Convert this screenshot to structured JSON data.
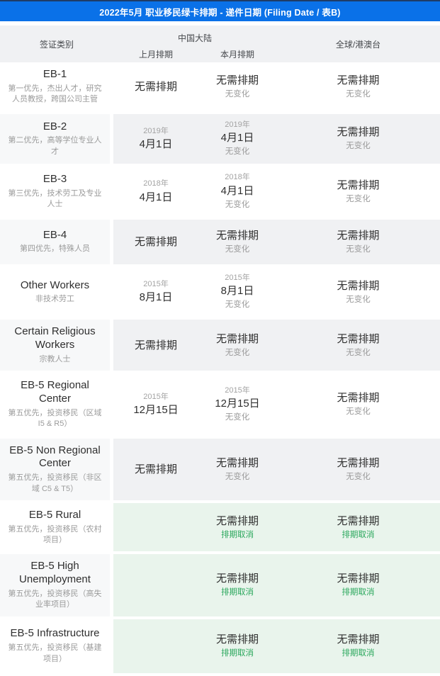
{
  "banner": {
    "title": "2022年5月 职业移民绿卡排期 - 递件日期 (Filing Date / 表B)"
  },
  "colors": {
    "banner_bg": "#0a71e8",
    "banner_top_stripe": "#1f3c66",
    "header_bg": "#f0f1f3",
    "gray_row_bg": "#f0f1f3",
    "green_cell_bg": "#e9f4ec",
    "green_text": "#2aa75c"
  },
  "table": {
    "header": {
      "col_category": "签证类别",
      "col_china_group": "中国大陆",
      "col_prev": "上月排期",
      "col_curr": "本月排期",
      "col_global": "全球/港澳台"
    },
    "rows": [
      {
        "title": "EB-1",
        "subtitle": "第一优先，杰出人才，研究人员教授，跨国公司主管",
        "shade": "white",
        "green": false,
        "prev": {
          "main": "无需排期"
        },
        "curr": {
          "main": "无需排期",
          "note": "无变化"
        },
        "global": {
          "main": "无需排期",
          "note": "无变化"
        }
      },
      {
        "title": "EB-2",
        "subtitle": "第二优先，高等学位专业人才",
        "shade": "gray",
        "green": false,
        "prev": {
          "year": "2019年",
          "main": "4月1日"
        },
        "curr": {
          "year": "2019年",
          "main": "4月1日",
          "note": "无变化"
        },
        "global": {
          "main": "无需排期",
          "note": "无变化"
        }
      },
      {
        "title": "EB-3",
        "subtitle": "第三优先，技术劳工及专业人士",
        "shade": "white",
        "green": false,
        "prev": {
          "year": "2018年",
          "main": "4月1日"
        },
        "curr": {
          "year": "2018年",
          "main": "4月1日",
          "note": "无变化"
        },
        "global": {
          "main": "无需排期",
          "note": "无变化"
        }
      },
      {
        "title": "EB-4",
        "subtitle": "第四优先，特殊人员",
        "shade": "gray",
        "green": false,
        "prev": {
          "main": "无需排期"
        },
        "curr": {
          "main": "无需排期",
          "note": "无变化"
        },
        "global": {
          "main": "无需排期",
          "note": "无变化"
        }
      },
      {
        "title": "Other Workers",
        "subtitle": "非技术劳工",
        "shade": "white",
        "green": false,
        "prev": {
          "year": "2015年",
          "main": "8月1日"
        },
        "curr": {
          "year": "2015年",
          "main": "8月1日",
          "note": "无变化"
        },
        "global": {
          "main": "无需排期",
          "note": "无变化"
        }
      },
      {
        "title": "Certain Religious Workers",
        "subtitle": "宗教人士",
        "shade": "gray",
        "green": false,
        "prev": {
          "main": "无需排期"
        },
        "curr": {
          "main": "无需排期",
          "note": "无变化"
        },
        "global": {
          "main": "无需排期",
          "note": "无变化"
        }
      },
      {
        "title": "EB-5 Regional Center",
        "subtitle": "第五优先，投资移民（区域 I5 & R5）",
        "shade": "white",
        "green": false,
        "prev": {
          "year": "2015年",
          "main": "12月15日"
        },
        "curr": {
          "year": "2015年",
          "main": "12月15日",
          "note": "无变化"
        },
        "global": {
          "main": "无需排期",
          "note": "无变化"
        }
      },
      {
        "title": "EB-5 Non Regional Center",
        "subtitle": "第五优先，投资移民（非区域 C5 & T5）",
        "shade": "gray",
        "green": false,
        "prev": {
          "main": "无需排期"
        },
        "curr": {
          "main": "无需排期",
          "note": "无变化"
        },
        "global": {
          "main": "无需排期",
          "note": "无变化"
        }
      },
      {
        "title": "EB-5 Rural",
        "subtitle": "第五优先，投资移民（农村项目）",
        "shade": "white",
        "green": true,
        "prev": null,
        "curr": {
          "main": "无需排期",
          "note": "排期取消",
          "note_green": true
        },
        "global": {
          "main": "无需排期",
          "note": "排期取消",
          "note_green": true
        }
      },
      {
        "title": "EB-5 High Unemployment",
        "subtitle": "第五优先，投资移民（高失业率项目）",
        "shade": "gray",
        "green": true,
        "prev": null,
        "curr": {
          "main": "无需排期",
          "note": "排期取消",
          "note_green": true
        },
        "global": {
          "main": "无需排期",
          "note": "排期取消",
          "note_green": true
        }
      },
      {
        "title": "EB-5 Infrastructure",
        "subtitle": "第五优先，投资移民（基建项目）",
        "shade": "white",
        "green": true,
        "prev": null,
        "curr": {
          "main": "无需排期",
          "note": "排期取消",
          "note_green": true
        },
        "global": {
          "main": "无需排期",
          "note": "排期取消",
          "note_green": true
        }
      }
    ]
  }
}
